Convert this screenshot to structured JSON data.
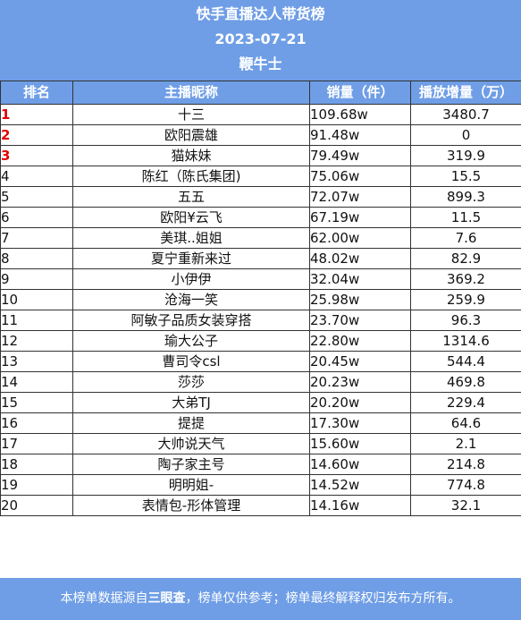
{
  "header": {
    "title": "快手直播达人带货榜",
    "date": "2023-07-21",
    "brand": "鞭牛士"
  },
  "columns": {
    "rank": "排名",
    "name": "主播昵称",
    "sales": "销量（件）",
    "plays": "播放增量（万）"
  },
  "rows": [
    {
      "rank": "1",
      "name": "十三",
      "sales": "109.68w",
      "plays": "3480.7"
    },
    {
      "rank": "2",
      "name": "欧阳震雄",
      "sales": "91.48w",
      "plays": "0"
    },
    {
      "rank": "3",
      "name": "猫妹妹",
      "sales": "79.49w",
      "plays": "319.9"
    },
    {
      "rank": "4",
      "name": "陈红（陈氏集团)",
      "sales": "75.06w",
      "plays": "15.5"
    },
    {
      "rank": "5",
      "name": "五五",
      "sales": "72.07w",
      "plays": "899.3"
    },
    {
      "rank": "6",
      "name": "欧阳¥云飞",
      "sales": "67.19w",
      "plays": "11.5"
    },
    {
      "rank": "7",
      "name": "美琪..姐姐",
      "sales": "62.00w",
      "plays": "7.6"
    },
    {
      "rank": "8",
      "name": "夏宁重新来过",
      "sales": "48.02w",
      "plays": "82.9"
    },
    {
      "rank": "9",
      "name": "小伊伊",
      "sales": "32.04w",
      "plays": "369.2"
    },
    {
      "rank": "10",
      "name": "沧海一笑",
      "sales": "25.98w",
      "plays": "259.9"
    },
    {
      "rank": "11",
      "name": "阿敏子品质女装穿搭",
      "sales": "23.70w",
      "plays": "96.3"
    },
    {
      "rank": "12",
      "name": "瑜大公子",
      "sales": "22.80w",
      "plays": "1314.6"
    },
    {
      "rank": "13",
      "name": "曹司令csl",
      "sales": "20.45w",
      "plays": "544.4"
    },
    {
      "rank": "14",
      "name": "莎莎",
      "sales": "20.23w",
      "plays": "469.8"
    },
    {
      "rank": "15",
      "name": "大弟TJ",
      "sales": "20.20w",
      "plays": "229.4"
    },
    {
      "rank": "16",
      "name": "提提",
      "sales": "17.30w",
      "plays": "64.6"
    },
    {
      "rank": "17",
      "name": "大帅说天气",
      "sales": "15.60w",
      "plays": "2.1"
    },
    {
      "rank": "18",
      "name": "陶子家主号",
      "sales": "14.60w",
      "plays": "214.8"
    },
    {
      "rank": "19",
      "name": "明明姐-",
      "sales": "14.52w",
      "plays": "774.8"
    },
    {
      "rank": "20",
      "name": "表情包-形体管理",
      "sales": "14.16w",
      "plays": "32.1"
    }
  ],
  "footer": {
    "prefix": "本榜单数据源自",
    "source": "三眼查",
    "suffix": "，榜单仅供参考；榜单最终解释权归发布方所有。"
  },
  "colors": {
    "header_bg": "#6f9ee6",
    "top_rank": "#e00000"
  }
}
